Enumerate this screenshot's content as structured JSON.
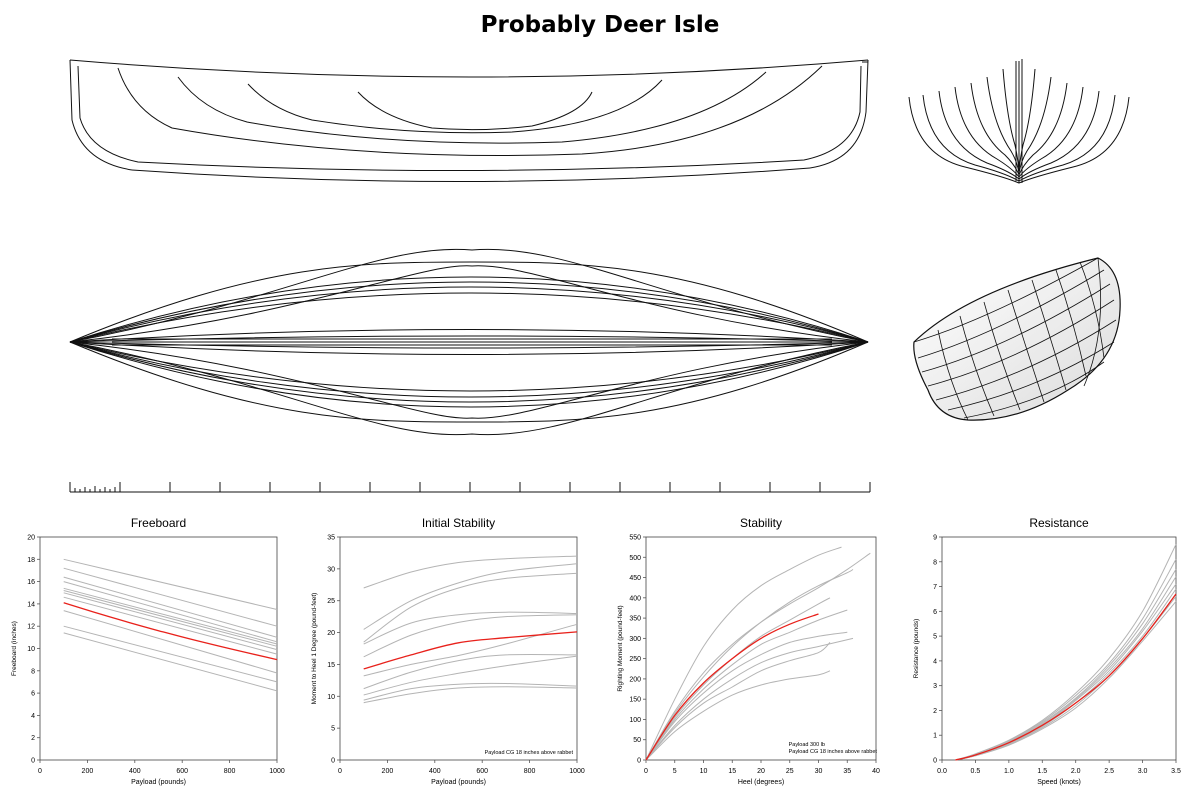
{
  "page": {
    "title": "Probably Deer Isle"
  },
  "colors": {
    "highlight": "#e8211b",
    "comparison": "#b4b4b4",
    "line_drawing": "#111111",
    "frame": "#444444"
  },
  "drawings": [
    {
      "name": "profile-view",
      "kind": "profile"
    },
    {
      "name": "body-plan-view",
      "kind": "sections"
    },
    {
      "name": "plan-view",
      "kind": "waterlines"
    },
    {
      "name": "perspective-view",
      "kind": "3d-hull"
    },
    {
      "name": "scale-bar",
      "kind": "scale"
    }
  ],
  "chart_data": [
    {
      "type": "line",
      "title": "Freeboard",
      "xlabel": "Payload (pounds)",
      "ylabel": "Freeboard (inches)",
      "xlim": [
        0,
        1000
      ],
      "ylim": [
        0,
        20
      ],
      "xticks": [
        0,
        200,
        400,
        600,
        800,
        1000
      ],
      "yticks": [
        0,
        2,
        4,
        6,
        8,
        10,
        12,
        14,
        16,
        18,
        20
      ],
      "grid": false,
      "annotations": [],
      "highlight": {
        "x": [
          100,
          300,
          500,
          700,
          1000
        ],
        "y": [
          14.1,
          12.8,
          11.6,
          10.5,
          9.0
        ]
      },
      "comparison": [
        {
          "x": [
            100,
            1000
          ],
          "y": [
            18.0,
            13.5
          ]
        },
        {
          "x": [
            100,
            1000
          ],
          "y": [
            17.2,
            12.0
          ]
        },
        {
          "x": [
            100,
            1000
          ],
          "y": [
            16.4,
            11.0
          ]
        },
        {
          "x": [
            100,
            1000
          ],
          "y": [
            16.0,
            10.6
          ]
        },
        {
          "x": [
            100,
            1000
          ],
          "y": [
            15.4,
            10.4
          ]
        },
        {
          "x": [
            100,
            1000
          ],
          "y": [
            15.2,
            10.2
          ]
        },
        {
          "x": [
            100,
            1000
          ],
          "y": [
            15.0,
            9.9
          ]
        },
        {
          "x": [
            100,
            1000
          ],
          "y": [
            14.6,
            9.5
          ]
        },
        {
          "x": [
            100,
            1000
          ],
          "y": [
            13.4,
            7.8
          ]
        },
        {
          "x": [
            100,
            1000
          ],
          "y": [
            12.0,
            7.0
          ]
        },
        {
          "x": [
            100,
            1000
          ],
          "y": [
            11.4,
            6.2
          ]
        }
      ]
    },
    {
      "type": "line",
      "title": "Initial Stability",
      "xlabel": "Payload (pounds)",
      "ylabel": "Moment to Heel 1 Degree  (pound-feet)",
      "xlim": [
        0,
        1000
      ],
      "ylim": [
        0,
        35
      ],
      "xticks": [
        0,
        200,
        400,
        600,
        800,
        1000
      ],
      "yticks": [
        0,
        5,
        10,
        15,
        20,
        25,
        30,
        35
      ],
      "grid": false,
      "annotations": [
        "Payload CG 18 inches above rabbet"
      ],
      "highlight": {
        "x": [
          100,
          300,
          500,
          700,
          1000
        ],
        "y": [
          14.3,
          16.5,
          18.4,
          19.2,
          20.1
        ]
      },
      "comparison": [
        {
          "x": [
            100,
            300,
            500,
            700,
            1000
          ],
          "y": [
            27.0,
            29.5,
            31.0,
            31.6,
            32.0
          ]
        },
        {
          "x": [
            100,
            300,
            500,
            700,
            1000
          ],
          "y": [
            18.5,
            24.0,
            27.0,
            28.5,
            29.3
          ]
        },
        {
          "x": [
            100,
            300,
            500,
            700,
            1000
          ],
          "y": [
            20.5,
            25.0,
            27.8,
            29.6,
            30.8
          ]
        },
        {
          "x": [
            100,
            300,
            500,
            700,
            1000
          ],
          "y": [
            18.2,
            21.5,
            22.8,
            23.2,
            23.0
          ]
        },
        {
          "x": [
            100,
            300,
            500,
            700,
            1000
          ],
          "y": [
            16.2,
            19.6,
            21.6,
            22.5,
            22.8
          ]
        },
        {
          "x": [
            100,
            300,
            500,
            700,
            1000
          ],
          "y": [
            13.2,
            15.0,
            16.4,
            18.2,
            21.3
          ]
        },
        {
          "x": [
            100,
            300,
            500,
            700,
            1000
          ],
          "y": [
            11.2,
            13.8,
            15.6,
            16.5,
            16.5
          ]
        },
        {
          "x": [
            100,
            300,
            500,
            700,
            1000
          ],
          "y": [
            10.2,
            12.2,
            13.6,
            14.8,
            16.3
          ]
        },
        {
          "x": [
            100,
            300,
            500,
            700,
            1000
          ],
          "y": [
            9.4,
            11.2,
            11.9,
            12.0,
            11.6
          ]
        },
        {
          "x": [
            100,
            300,
            500,
            700,
            1000
          ],
          "y": [
            9.0,
            10.4,
            11.3,
            11.5,
            11.3
          ]
        }
      ]
    },
    {
      "type": "line",
      "title": "Stability",
      "xlabel": "Heel  (degrees)",
      "ylabel": "Righting Moment  (pound-feet)",
      "xlim": [
        0,
        40
      ],
      "ylim": [
        0,
        550
      ],
      "xticks": [
        0,
        5,
        10,
        15,
        20,
        25,
        30,
        35,
        40
      ],
      "yticks": [
        0,
        50,
        100,
        150,
        200,
        250,
        300,
        350,
        400,
        450,
        500,
        550
      ],
      "grid": false,
      "annotations": [
        "Payload 300 lb",
        "Payload CG 18 inches above rabbet"
      ],
      "highlight": {
        "x": [
          0,
          5,
          10,
          15,
          20,
          25,
          30
        ],
        "y": [
          0,
          110,
          190,
          250,
          300,
          335,
          360
        ]
      },
      "comparison": [
        {
          "x": [
            0,
            5,
            10,
            15,
            20,
            25,
            30,
            34
          ],
          "y": [
            0,
            150,
            280,
            370,
            430,
            470,
            505,
            525
          ]
        },
        {
          "x": [
            0,
            5,
            10,
            15,
            20,
            25,
            30,
            35,
            39
          ],
          "y": [
            0,
            120,
            215,
            285,
            340,
            385,
            425,
            470,
            510
          ]
        },
        {
          "x": [
            0,
            5,
            10,
            15,
            20,
            25,
            30,
            35,
            36
          ],
          "y": [
            0,
            115,
            205,
            280,
            340,
            390,
            430,
            462,
            470
          ]
        },
        {
          "x": [
            0,
            5,
            10,
            15,
            20,
            25,
            30,
            32
          ],
          "y": [
            0,
            105,
            185,
            250,
            305,
            345,
            385,
            400
          ]
        },
        {
          "x": [
            0,
            5,
            10,
            15,
            20,
            25,
            30,
            35
          ],
          "y": [
            0,
            100,
            175,
            235,
            285,
            315,
            345,
            370
          ]
        },
        {
          "x": [
            0,
            5,
            10,
            15,
            20,
            25,
            30,
            35
          ],
          "y": [
            0,
            95,
            165,
            220,
            260,
            290,
            305,
            315
          ]
        },
        {
          "x": [
            0,
            5,
            10,
            15,
            20,
            25,
            30,
            36
          ],
          "y": [
            0,
            85,
            150,
            200,
            240,
            265,
            280,
            300
          ]
        },
        {
          "x": [
            0,
            5,
            10,
            15,
            20,
            25,
            30,
            32
          ],
          "y": [
            0,
            80,
            140,
            180,
            220,
            245,
            265,
            290
          ]
        },
        {
          "x": [
            0,
            5,
            10,
            15,
            20,
            25,
            30,
            32
          ],
          "y": [
            0,
            70,
            120,
            160,
            185,
            200,
            210,
            220
          ]
        }
      ]
    },
    {
      "type": "line",
      "title": "Resistance",
      "xlabel": "Speed  (knots)",
      "ylabel": "Resistance  (pounds)",
      "xlim": [
        0,
        3.5
      ],
      "ylim": [
        0,
        9
      ],
      "xticks": [
        0.0,
        0.5,
        1.0,
        1.5,
        2.0,
        2.5,
        3.0,
        3.5
      ],
      "yticks": [
        0,
        1,
        2,
        3,
        4,
        5,
        6,
        7,
        8,
        9
      ],
      "xtick_labels": [
        "0.0",
        "0.5",
        "1.0",
        "1.5",
        "2.0",
        "2.5",
        "3.0",
        "3.5"
      ],
      "grid": false,
      "annotations": [],
      "highlight": {
        "x": [
          0.2,
          0.5,
          1.0,
          1.5,
          2.0,
          2.5,
          3.0,
          3.5
        ],
        "y": [
          0.0,
          0.2,
          0.7,
          1.4,
          2.3,
          3.4,
          4.9,
          6.7
        ]
      },
      "comparison": [
        {
          "x": [
            0.2,
            0.5,
            1.0,
            1.5,
            2.0,
            2.5,
            3.0,
            3.5
          ],
          "y": [
            0.0,
            0.25,
            0.8,
            1.6,
            2.7,
            4.1,
            6.0,
            8.7
          ]
        },
        {
          "x": [
            0.2,
            0.5,
            1.0,
            1.5,
            2.0,
            2.5,
            3.0,
            3.5
          ],
          "y": [
            0.0,
            0.22,
            0.78,
            1.55,
            2.6,
            3.9,
            5.7,
            8.1
          ]
        },
        {
          "x": [
            0.2,
            0.5,
            1.0,
            1.5,
            2.0,
            2.5,
            3.0,
            3.5
          ],
          "y": [
            0.0,
            0.22,
            0.75,
            1.5,
            2.5,
            3.8,
            5.5,
            7.7
          ]
        },
        {
          "x": [
            0.2,
            0.5,
            1.0,
            1.5,
            2.0,
            2.5,
            3.0,
            3.5
          ],
          "y": [
            0.0,
            0.2,
            0.72,
            1.45,
            2.45,
            3.7,
            5.3,
            7.4
          ]
        },
        {
          "x": [
            0.2,
            0.5,
            1.0,
            1.5,
            2.0,
            2.5,
            3.0,
            3.5
          ],
          "y": [
            0.0,
            0.2,
            0.7,
            1.4,
            2.4,
            3.6,
            5.2,
            7.1
          ]
        },
        {
          "x": [
            0.2,
            0.5,
            1.0,
            1.5,
            2.0,
            2.5,
            3.0,
            3.5
          ],
          "y": [
            0.0,
            0.18,
            0.66,
            1.35,
            2.3,
            3.5,
            5.0,
            6.9
          ]
        },
        {
          "x": [
            0.2,
            0.5,
            1.0,
            1.5,
            2.0,
            2.5,
            3.0,
            3.5
          ],
          "y": [
            0.0,
            0.18,
            0.63,
            1.3,
            2.2,
            3.4,
            4.9,
            6.6
          ]
        },
        {
          "x": [
            0.2,
            0.5,
            1.0,
            1.5,
            2.0,
            2.5,
            3.0,
            3.5
          ],
          "y": [
            0.0,
            0.17,
            0.6,
            1.25,
            2.1,
            3.3,
            4.8,
            6.4
          ]
        }
      ]
    }
  ]
}
